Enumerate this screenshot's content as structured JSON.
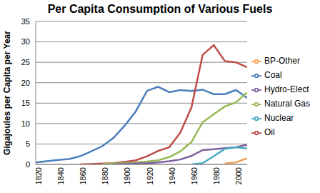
{
  "chart_data": {
    "type": "line",
    "title": "Per Capita Consumption of Various Fuels",
    "y_label": "Gigajoules per Capita per Year",
    "x": [
      1820,
      1830,
      1840,
      1850,
      1860,
      1870,
      1880,
      1890,
      1900,
      1910,
      1920,
      1930,
      1940,
      1950,
      1960,
      1970,
      1980,
      1990,
      2000,
      2010
    ],
    "xlim": [
      1820,
      2010
    ],
    "xticks": [
      1820,
      1840,
      1860,
      1880,
      1900,
      1920,
      1940,
      1960,
      1980,
      2000
    ],
    "ylim": [
      0,
      35
    ],
    "yticks": [
      0,
      5,
      10,
      15,
      20,
      25,
      30,
      35
    ],
    "grid": true,
    "legend": "right",
    "marker": "none",
    "series": [
      {
        "name": "Coal",
        "color": "#4a7ebb",
        "values": [
          0.5,
          0.8,
          1.1,
          1.3,
          2.0,
          3.2,
          4.5,
          6.5,
          9.5,
          13.0,
          18.0,
          19.0,
          17.7,
          18.2,
          18.0,
          18.3,
          17.2,
          17.2,
          18.2,
          16.3
        ]
      },
      {
        "name": "Oil",
        "color": "#be4b48",
        "values": [
          null,
          null,
          null,
          null,
          0.0,
          0.1,
          0.2,
          0.3,
          0.6,
          1.0,
          2.0,
          3.3,
          4.2,
          7.8,
          14.0,
          26.8,
          29.2,
          25.3,
          25.0,
          23.8
        ]
      },
      {
        "name": "Natural Gas",
        "color": "#98b954",
        "values": [
          null,
          null,
          null,
          null,
          null,
          null,
          0.1,
          0.2,
          0.3,
          0.5,
          0.7,
          1.0,
          1.8,
          3.2,
          5.5,
          10.3,
          12.3,
          14.2,
          15.2,
          17.6
        ]
      },
      {
        "name": "Hydro-Elect",
        "color": "#7d60a0",
        "values": [
          null,
          null,
          null,
          null,
          null,
          null,
          null,
          0.0,
          0.1,
          0.2,
          0.3,
          0.5,
          0.8,
          1.2,
          2.1,
          3.5,
          3.7,
          4.0,
          4.2,
          4.8
        ]
      },
      {
        "name": "Nuclear",
        "color": "#46aac5",
        "values": [
          null,
          null,
          null,
          null,
          null,
          null,
          null,
          null,
          null,
          null,
          null,
          null,
          null,
          null,
          0.0,
          0.3,
          2.0,
          3.8,
          4.2,
          3.9
        ]
      },
      {
        "name": "BP-Other",
        "color": "#f59d56",
        "values": [
          null,
          null,
          null,
          null,
          null,
          null,
          null,
          null,
          null,
          null,
          null,
          null,
          null,
          null,
          null,
          null,
          null,
          0.2,
          0.5,
          1.5
        ]
      }
    ]
  }
}
